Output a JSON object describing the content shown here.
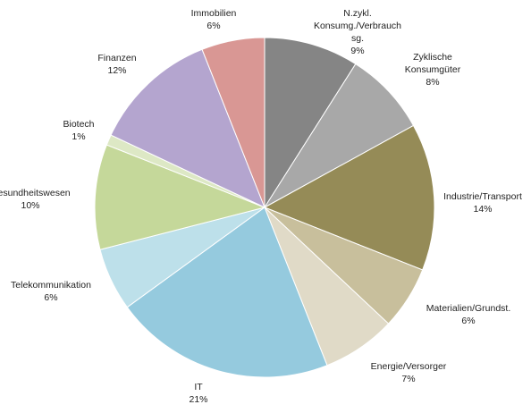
{
  "chart_data": {
    "type": "pie",
    "title": "",
    "start_angle_deg": 0,
    "direction": "clockwise",
    "slices": [
      {
        "label": [
          "N.zykl.",
          "Konsumg./Verbrauch",
          "sg."
        ],
        "value": 9,
        "value_label": "9%",
        "color": "#858585"
      },
      {
        "label": [
          "Zyklische",
          "Konsumgüter"
        ],
        "value": 8,
        "value_label": "8%",
        "color": "#a8a8a8"
      },
      {
        "label": [
          "Industrie/Transport"
        ],
        "value": 14,
        "value_label": "14%",
        "color": "#958b57"
      },
      {
        "label": [
          "Materialien/Grundst."
        ],
        "value": 6,
        "value_label": "6%",
        "color": "#c8bf9c"
      },
      {
        "label": [
          "Energie/Versorger"
        ],
        "value": 7,
        "value_label": "7%",
        "color": "#e0dac7"
      },
      {
        "label": [
          "IT"
        ],
        "value": 21,
        "value_label": "21%",
        "color": "#95cade"
      },
      {
        "label": [
          "Telekommunikation"
        ],
        "value": 6,
        "value_label": "6%",
        "color": "#bde0ea"
      },
      {
        "label": [
          "Gesundheitswesen"
        ],
        "value": 10,
        "value_label": "10%",
        "color": "#c5d89a"
      },
      {
        "label": [
          "Biotech"
        ],
        "value": 1,
        "value_label": "1%",
        "color": "#dde8c5"
      },
      {
        "label": [
          "Finanzen"
        ],
        "value": 12,
        "value_label": "12%",
        "color": "#b4a5cf"
      },
      {
        "label": [
          "Immobilien"
        ],
        "value": 6,
        "value_label": "6%",
        "color": "#d99794"
      }
    ]
  }
}
